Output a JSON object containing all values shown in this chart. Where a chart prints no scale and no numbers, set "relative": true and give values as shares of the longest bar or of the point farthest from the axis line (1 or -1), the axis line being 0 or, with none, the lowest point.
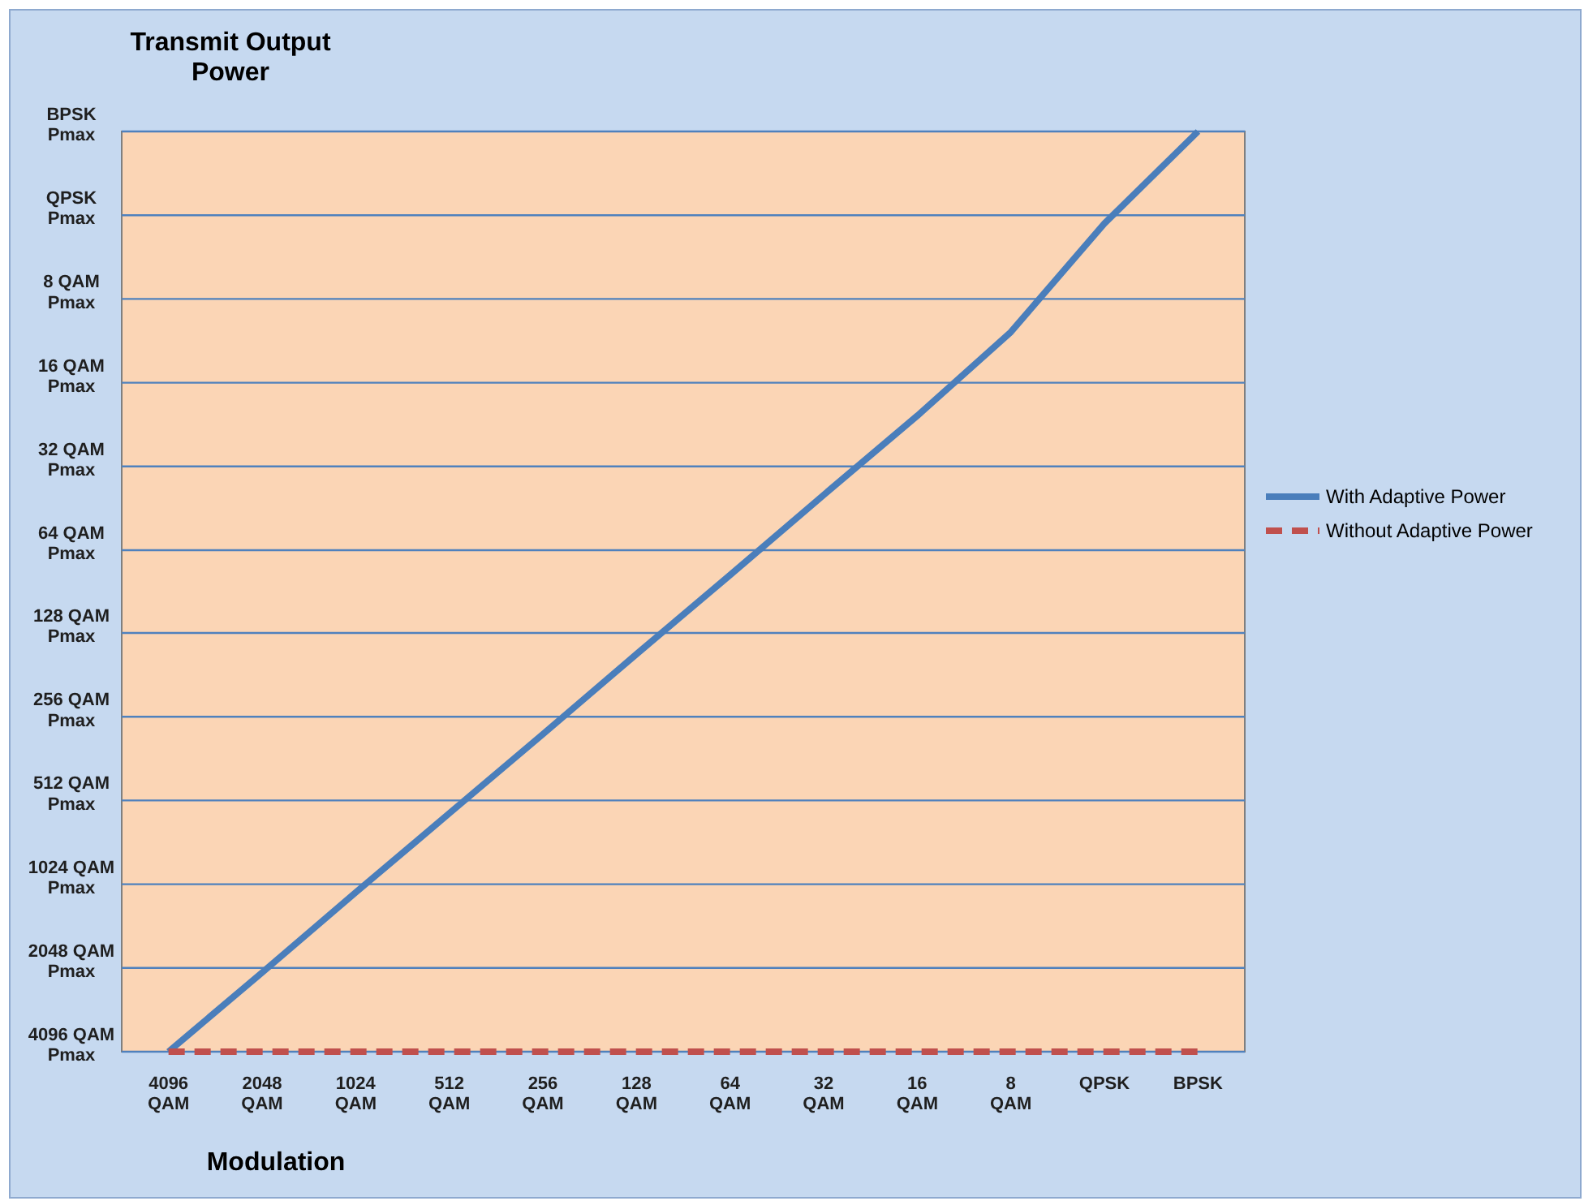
{
  "chart_data": {
    "type": "line",
    "title": "Transmit Output Power",
    "xlabel": "Modulation",
    "categories": [
      "4096 QAM",
      "2048 QAM",
      "1024 QAM",
      "512 QAM",
      "256 QAM",
      "128 QAM",
      "64 QAM",
      "32 QAM",
      "16 QAM",
      "8 QAM",
      "QPSK",
      "BPSK"
    ],
    "series": [
      {
        "name": "With Adaptive Power",
        "color": "#4a7ebb",
        "line_style": "solid",
        "values": [
          0,
          0.086,
          0.173,
          0.259,
          0.345,
          0.432,
          0.518,
          0.605,
          0.691,
          0.782,
          0.9,
          1
        ]
      },
      {
        "name": "Without Adaptive Power",
        "color": "#c0504d",
        "line_style": "dashed",
        "values": [
          0,
          0,
          0,
          0,
          0,
          0,
          0,
          0,
          0,
          0,
          0,
          0
        ]
      }
    ],
    "relative": true,
    "ref_lines": [
      {
        "axis": "y",
        "value": 1,
        "label": "BPSK Pmax",
        "color": "#4f81bd"
      },
      {
        "axis": "y",
        "value": 0.909,
        "label": "QPSK Pmax",
        "color": "#4f81bd"
      },
      {
        "axis": "y",
        "value": 0.818,
        "label": "8 QAM Pmax",
        "color": "#4f81bd"
      },
      {
        "axis": "y",
        "value": 0.727,
        "label": "16 QAM Pmax",
        "color": "#4f81bd"
      },
      {
        "axis": "y",
        "value": 0.636,
        "label": "32 QAM Pmax",
        "color": "#4f81bd"
      },
      {
        "axis": "y",
        "value": 0.545,
        "label": "64 QAM Pmax",
        "color": "#4f81bd"
      },
      {
        "axis": "y",
        "value": 0.455,
        "label": "128 QAM Pmax",
        "color": "#4f81bd"
      },
      {
        "axis": "y",
        "value": 0.364,
        "label": "256 QAM Pmax",
        "color": "#4f81bd"
      },
      {
        "axis": "y",
        "value": 0.273,
        "label": "512 QAM Pmax",
        "color": "#4f81bd"
      },
      {
        "axis": "y",
        "value": 0.182,
        "label": "1024 QAM Pmax",
        "color": "#4f81bd"
      },
      {
        "axis": "y",
        "value": 0.091,
        "label": "2048 QAM Pmax",
        "color": "#4f81bd"
      },
      {
        "axis": "y",
        "value": 0,
        "label": "4096 QAM Pmax",
        "color": "#4f81bd"
      }
    ],
    "legend": "right",
    "marker": "none"
  }
}
